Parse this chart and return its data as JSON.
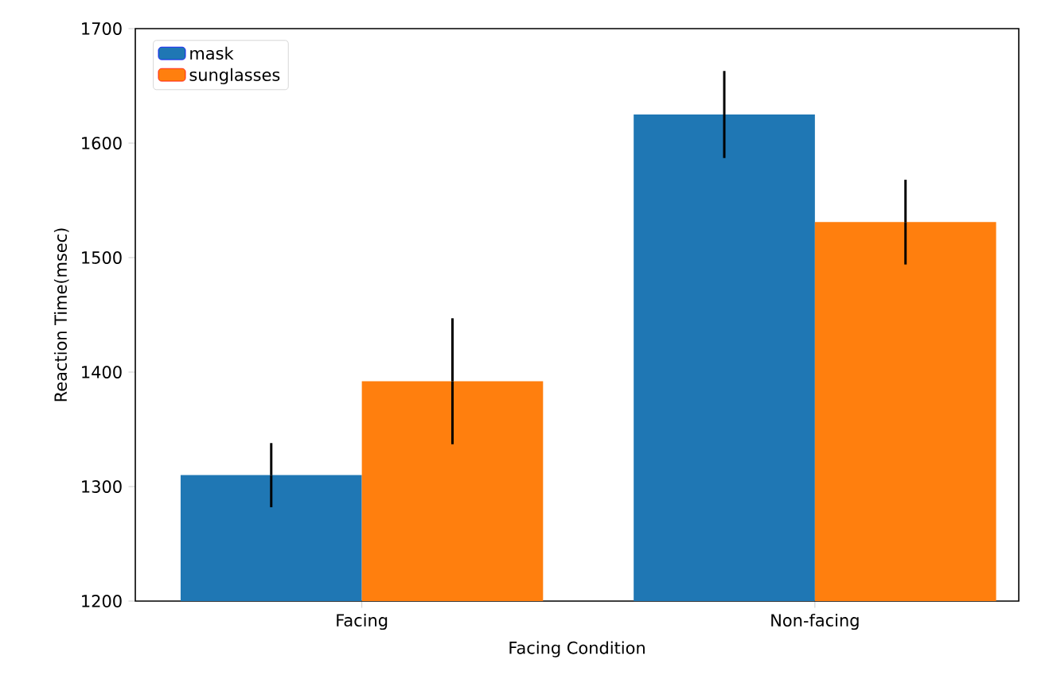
{
  "chart_data": {
    "type": "bar",
    "xlabel": "Facing Condition",
    "ylabel": "Reaction Time(msec)",
    "categories": [
      "Facing",
      "Non-facing"
    ],
    "series": [
      {
        "name": "mask",
        "color": "#1f77b4",
        "values": [
          1310,
          1625
        ],
        "errors": [
          28,
          38
        ]
      },
      {
        "name": "sunglasses",
        "color": "#ff7f0e",
        "values": [
          1392,
          1531
        ],
        "errors": [
          55,
          37
        ]
      }
    ],
    "ylim": [
      1200,
      1700
    ],
    "yticks": [
      1200,
      1300,
      1400,
      1500,
      1600,
      1700
    ],
    "legend": "top left"
  }
}
